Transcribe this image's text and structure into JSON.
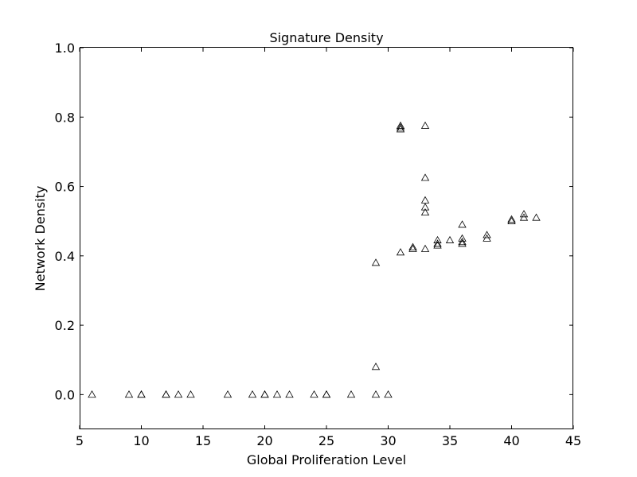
{
  "chart_data": {
    "type": "scatter",
    "title": "Signature Density",
    "xlabel": "Global Proliferation Level",
    "ylabel": "Network Density",
    "xlim": [
      5,
      45
    ],
    "ylim": [
      -0.1,
      1.0
    ],
    "xticks": [
      5,
      10,
      15,
      20,
      25,
      30,
      35,
      40,
      45
    ],
    "xtick_labels": [
      "5",
      "10",
      "15",
      "20",
      "25",
      "30",
      "35",
      "40",
      "45"
    ],
    "yticks": [
      0.0,
      0.2,
      0.4,
      0.6,
      0.8,
      1.0
    ],
    "ytick_labels": [
      "0.0",
      "0.2",
      "0.4",
      "0.6",
      "0.8",
      "1.0"
    ],
    "grid": false,
    "marker": "open-triangle",
    "marker_color": "#000000",
    "series": [
      {
        "points": [
          [
            6,
            0.0
          ],
          [
            9,
            0.0
          ],
          [
            10,
            0.0
          ],
          [
            10,
            0.0
          ],
          [
            12,
            0.0
          ],
          [
            12,
            0.0
          ],
          [
            13,
            0.0
          ],
          [
            14,
            0.0
          ],
          [
            17,
            0.0
          ],
          [
            19,
            0.0
          ],
          [
            20,
            0.0
          ],
          [
            20,
            0.0
          ],
          [
            21,
            0.0
          ],
          [
            22,
            0.0
          ],
          [
            24,
            0.0
          ],
          [
            25,
            0.0
          ],
          [
            25,
            0.0
          ],
          [
            27,
            0.0
          ],
          [
            29,
            0.0
          ],
          [
            30,
            0.0
          ],
          [
            29,
            0.08
          ],
          [
            29,
            0.38
          ],
          [
            31,
            0.41
          ],
          [
            31,
            0.77
          ],
          [
            31,
            0.775
          ],
          [
            31,
            0.765
          ],
          [
            32,
            0.425
          ],
          [
            32,
            0.42
          ],
          [
            33,
            0.42
          ],
          [
            33,
            0.525
          ],
          [
            33,
            0.54
          ],
          [
            33,
            0.56
          ],
          [
            33,
            0.625
          ],
          [
            33,
            0.775
          ],
          [
            34,
            0.43
          ],
          [
            34,
            0.435
          ],
          [
            34,
            0.445
          ],
          [
            35,
            0.445
          ],
          [
            36,
            0.435
          ],
          [
            36,
            0.44
          ],
          [
            36,
            0.45
          ],
          [
            36,
            0.49
          ],
          [
            38,
            0.45
          ],
          [
            38,
            0.46
          ],
          [
            40,
            0.5
          ],
          [
            40,
            0.505
          ],
          [
            41,
            0.51
          ],
          [
            41,
            0.52
          ],
          [
            42,
            0.51
          ]
        ]
      }
    ]
  }
}
